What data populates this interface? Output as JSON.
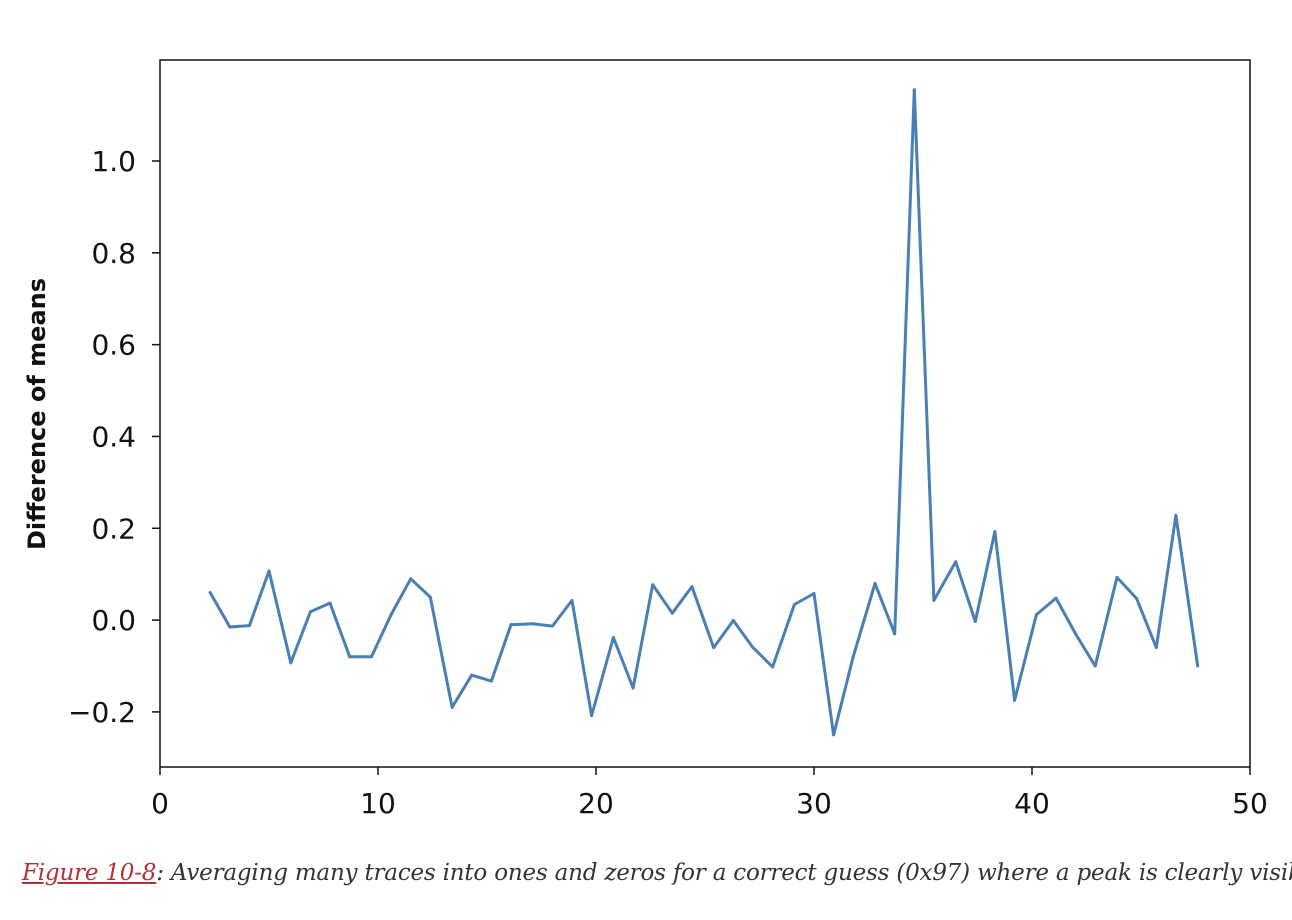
{
  "chart_data": {
    "type": "line",
    "title": "",
    "xlabel": "",
    "ylabel": "Difference of means",
    "xlim": [
      0,
      50
    ],
    "ylim": [
      -0.32,
      1.22
    ],
    "xticks": [
      0,
      10,
      20,
      30,
      40,
      50
    ],
    "xtick_labels": [
      "0",
      "10",
      "20",
      "30",
      "40",
      "50"
    ],
    "yticks": [
      -0.2,
      0.0,
      0.2,
      0.4,
      0.6,
      0.8,
      1.0
    ],
    "ytick_labels": [
      "−0.2",
      "0.0",
      "0.2",
      "0.4",
      "0.6",
      "0.8",
      "1.0"
    ],
    "grid": false,
    "color": "#4a7fb5",
    "series": [
      {
        "x": [
          2.3,
          3.2,
          4.1,
          5.0,
          6.0,
          6.9,
          7.8,
          8.7,
          9.7,
          10.6,
          11.5,
          12.4,
          13.4,
          14.3,
          15.2,
          16.1,
          17.1,
          18.0,
          18.9,
          19.8,
          20.8,
          21.7,
          22.6,
          23.5,
          24.4,
          25.4,
          26.3,
          27.2,
          28.1,
          29.1,
          30.0,
          30.9,
          31.8,
          32.8,
          33.7,
          34.6,
          35.5,
          36.5,
          37.4,
          38.3,
          39.2,
          40.2,
          41.1,
          42.0,
          42.9,
          43.9,
          44.8,
          45.7,
          46.6,
          47.6
        ],
        "y": [
          0.06,
          -0.015,
          -0.012,
          0.107,
          -0.093,
          0.018,
          0.037,
          -0.08,
          -0.08,
          0.012,
          0.09,
          0.05,
          -0.19,
          -0.12,
          -0.133,
          -0.01,
          -0.008,
          -0.013,
          0.043,
          -0.208,
          -0.038,
          -0.148,
          0.077,
          0.015,
          0.073,
          -0.06,
          -0.001,
          -0.06,
          -0.102,
          0.034,
          0.058,
          -0.25,
          -0.08,
          0.08,
          -0.03,
          1.155,
          0.043,
          0.127,
          -0.003,
          0.193,
          -0.175,
          0.012,
          0.048,
          -0.03,
          -0.1,
          0.093,
          0.047,
          -0.06,
          0.228,
          -0.1
        ]
      }
    ]
  },
  "caption": {
    "ref": "Figure 10-8",
    "text": ": Averaging many traces into ones and zeros for a correct guess (0x97) where a peak is clearly visible"
  }
}
